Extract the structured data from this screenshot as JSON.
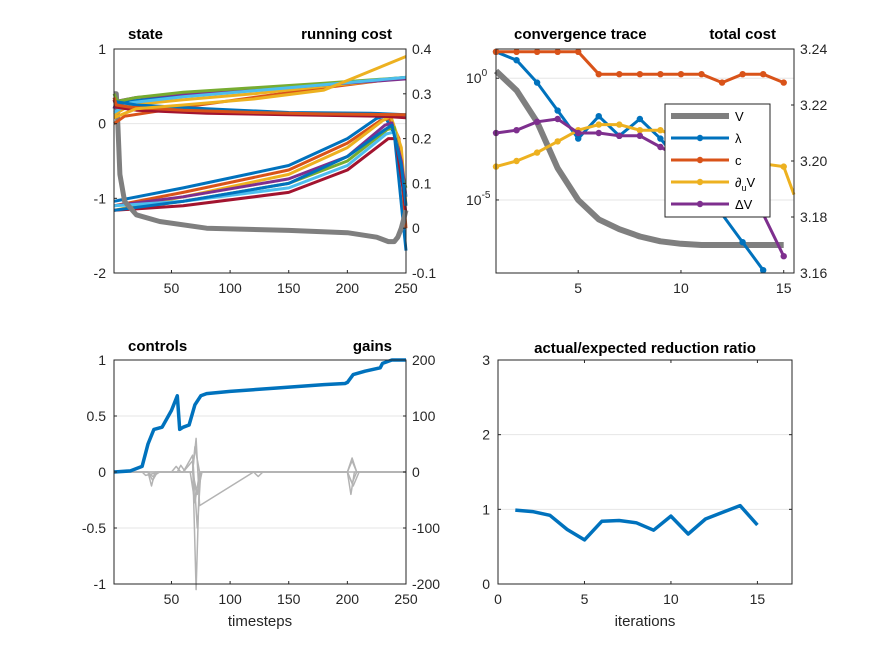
{
  "colors": {
    "V": "#7f7f7f",
    "lambda": "#0072bd",
    "c": "#d95319",
    "duV": "#edb120",
    "dV": "#7e2f8e",
    "gray": "#b3b3b3",
    "axis": "#262626",
    "grid": "#e6e6e6",
    "states": [
      "#0072bd",
      "#d95319",
      "#edb120",
      "#7e2f8e",
      "#77ac30",
      "#4dbeee",
      "#a2142f",
      "#0072bd",
      "#d95319",
      "#edb120"
    ]
  },
  "panels": {
    "top_left": {
      "title_left": "state",
      "title_right": "running cost"
    },
    "top_right": {
      "title_left": "convergence trace",
      "title_right": "total cost"
    },
    "bottom_left": {
      "title_left": "controls",
      "title_right": "gains",
      "xlabel": "timesteps"
    },
    "bottom_right": {
      "title": "actual/expected reduction ratio",
      "xlabel": "iterations"
    }
  },
  "chart_data": [
    {
      "id": "state",
      "type": "line",
      "title_left": "state",
      "title_right": "running cost",
      "x_range": [
        1,
        250
      ],
      "x_ticks": [
        50,
        100,
        150,
        200,
        250
      ],
      "ylim": [
        -2,
        1
      ],
      "y_ticks": [
        -2,
        -1,
        0,
        1
      ],
      "y2lim": [
        -0.1,
        0.4
      ],
      "y2_ticks": [
        -0.1,
        0,
        0.1,
        0.2,
        0.3,
        0.4
      ],
      "legend": "none",
      "state_series": [
        {
          "x": [
            1,
            3,
            15,
            60,
            120,
            180,
            250
          ],
          "y": [
            0.2,
            0.25,
            0.3,
            0.38,
            0.45,
            0.52,
            0.62
          ]
        },
        {
          "x": [
            1,
            10,
            60,
            120,
            180,
            250
          ],
          "y": [
            0.0,
            0.1,
            0.22,
            0.35,
            0.48,
            0.62
          ]
        },
        {
          "x": [
            1,
            15,
            60,
            120,
            180,
            250
          ],
          "y": [
            0.12,
            0.25,
            0.32,
            0.4,
            0.5,
            0.61
          ]
        },
        {
          "x": [
            1,
            3,
            20,
            60,
            120,
            180,
            250
          ],
          "y": [
            0.2,
            0.3,
            0.35,
            0.4,
            0.45,
            0.52,
            0.6
          ]
        },
        {
          "x": [
            1,
            4,
            20,
            60,
            120,
            180,
            250
          ],
          "y": [
            0.4,
            0.3,
            0.35,
            0.42,
            0.48,
            0.54,
            0.62
          ]
        },
        {
          "x": [
            1,
            15,
            60,
            120,
            180,
            250
          ],
          "y": [
            0.15,
            0.28,
            0.36,
            0.44,
            0.52,
            0.62
          ]
        },
        {
          "x": [
            1,
            3,
            20,
            80,
            150,
            230,
            250
          ],
          "y": [
            0.32,
            0.22,
            0.18,
            0.14,
            0.12,
            0.1,
            0.08
          ]
        },
        {
          "x": [
            1,
            20,
            80,
            150,
            220,
            250
          ],
          "y": [
            0.3,
            0.25,
            0.2,
            0.15,
            0.14,
            0.12
          ]
        },
        {
          "x": [
            1,
            3,
            15,
            60,
            120,
            180,
            250
          ],
          "y": [
            0.35,
            0.25,
            0.22,
            0.18,
            0.15,
            0.13,
            0.12
          ]
        },
        {
          "x": [
            1,
            20,
            60,
            120,
            180,
            250
          ],
          "y": [
            0.08,
            0.2,
            0.25,
            0.33,
            0.45,
            0.9
          ]
        }
      ],
      "cost_series": [
        {
          "x": [
            1,
            60,
            150,
            200,
            225,
            232,
            240,
            250
          ],
          "y": [
            0.06,
            0.09,
            0.14,
            0.2,
            0.245,
            0.25,
            0.21,
            -0.05
          ]
        },
        {
          "x": [
            1,
            60,
            150,
            200,
            228,
            236,
            244,
            250
          ],
          "y": [
            0.05,
            0.08,
            0.13,
            0.19,
            0.24,
            0.245,
            0.2,
            0.0
          ]
        },
        {
          "x": [
            1,
            60,
            150,
            200,
            230,
            237,
            246,
            250
          ],
          "y": [
            0.04,
            0.07,
            0.12,
            0.18,
            0.24,
            0.25,
            0.18,
            0.05
          ]
        },
        {
          "x": [
            1,
            60,
            150,
            200,
            232,
            238,
            246,
            250
          ],
          "y": [
            0.05,
            0.07,
            0.11,
            0.16,
            0.23,
            0.235,
            0.15,
            0.07
          ]
        },
        {
          "x": [
            1,
            60,
            150,
            200,
            234,
            240,
            246,
            250
          ],
          "y": [
            0.04,
            0.06,
            0.1,
            0.15,
            0.22,
            0.225,
            0.12,
            0.09
          ]
        },
        {
          "x": [
            1,
            60,
            150,
            200,
            233,
            240,
            247,
            250
          ],
          "y": [
            0.05,
            0.06,
            0.09,
            0.14,
            0.21,
            0.215,
            0.11,
            0.07
          ]
        },
        {
          "x": [
            1,
            60,
            150,
            200,
            235,
            241,
            248,
            250
          ],
          "y": [
            0.04,
            0.05,
            0.08,
            0.13,
            0.2,
            0.2,
            0.08,
            0.03
          ]
        },
        {
          "x": [
            1,
            60,
            150,
            200,
            232,
            238,
            246,
            250
          ],
          "y": [
            0.04,
            0.06,
            0.1,
            0.16,
            0.22,
            0.23,
            0.14,
            0.05
          ]
        }
      ],
      "cost_V": {
        "x": [
          1,
          3,
          4,
          6,
          10,
          20,
          40,
          80,
          150,
          200,
          225,
          235,
          240,
          243,
          246,
          248,
          250
        ],
        "y": [
          0.3,
          0.3,
          0.25,
          0.12,
          0.06,
          0.03,
          0.015,
          0.0,
          -0.005,
          -0.01,
          -0.02,
          -0.03,
          -0.03,
          -0.02,
          0.0,
          0.02,
          0.04
        ]
      }
    },
    {
      "id": "convergence",
      "type": "line",
      "title_left": "convergence trace",
      "title_right": "total cost",
      "x_range": [
        1,
        15.5
      ],
      "x_ticks": [
        5,
        10,
        15
      ],
      "y_log": true,
      "ylim_exp": [
        -8,
        1.2
      ],
      "y_ticks_exp": [
        0,
        -5
      ],
      "y2lim": [
        3.16,
        3.24
      ],
      "y2_ticks": [
        3.16,
        3.18,
        3.2,
        3.22,
        3.24
      ],
      "legend": "center-right",
      "series": [
        {
          "name": "V",
          "axis": "left",
          "x": [
            1,
            2,
            3,
            4,
            5,
            6,
            7,
            8,
            9,
            10,
            11,
            12,
            13,
            14,
            15
          ],
          "y_exp": [
            0.3,
            -0.5,
            -1.8,
            -3.7,
            -5.0,
            -5.8,
            -6.2,
            -6.5,
            -6.7,
            -6.8,
            -6.85,
            -6.85,
            -6.85,
            -6.85,
            -6.85
          ]
        },
        {
          "name": "λ",
          "axis": "right",
          "x": [
            1,
            2,
            3,
            4,
            5,
            6,
            7,
            8,
            9,
            10,
            11,
            12,
            13,
            14
          ],
          "y": [
            3.239,
            3.236,
            3.228,
            3.218,
            3.208,
            3.216,
            3.209,
            3.215,
            3.208,
            3.199,
            3.19,
            3.181,
            3.171,
            3.161
          ]
        },
        {
          "name": "c",
          "axis": "right",
          "x": [
            1,
            2,
            3,
            4,
            5,
            6,
            7,
            8,
            9,
            10,
            11,
            12,
            13,
            14,
            15
          ],
          "y": [
            3.239,
            3.239,
            3.239,
            3.239,
            3.239,
            3.231,
            3.231,
            3.231,
            3.231,
            3.231,
            3.231,
            3.228,
            3.231,
            3.231,
            3.228
          ]
        },
        {
          "name": "∂uV",
          "axis": "right",
          "x": [
            1,
            2,
            3,
            4,
            5,
            6,
            7,
            8,
            9,
            10,
            11,
            12,
            13,
            14,
            15,
            15.5
          ],
          "y": [
            3.198,
            3.2,
            3.203,
            3.207,
            3.211,
            3.213,
            3.213,
            3.211,
            3.211,
            3.208,
            3.208,
            3.205,
            3.203,
            3.199,
            3.198,
            3.188
          ]
        },
        {
          "name": "ΔV",
          "axis": "right",
          "x": [
            1,
            2,
            3,
            4,
            5,
            6,
            7,
            8,
            9,
            10,
            11,
            12,
            13,
            14,
            15
          ],
          "y": [
            3.21,
            3.211,
            3.214,
            3.215,
            3.21,
            3.21,
            3.209,
            3.209,
            3.205,
            3.201,
            3.197,
            3.192,
            3.186,
            3.181,
            3.166
          ]
        }
      ]
    },
    {
      "id": "controls",
      "type": "line",
      "title_left": "controls",
      "title_right": "gains",
      "x_range": [
        1,
        250
      ],
      "x_ticks": [
        50,
        100,
        150,
        200,
        250
      ],
      "ylim": [
        -1,
        1
      ],
      "y_ticks": [
        -1,
        -0.5,
        0,
        0.5,
        1
      ],
      "y2lim": [
        -200,
        200
      ],
      "y2_ticks": [
        -200,
        -100,
        0,
        100,
        200
      ],
      "legend": "none",
      "control": {
        "x": [
          1,
          15,
          25,
          30,
          35,
          42,
          50,
          55,
          57,
          60,
          65,
          70,
          75,
          80,
          100,
          140,
          180,
          198,
          200,
          205,
          215,
          228,
          230,
          238,
          250
        ],
        "y": [
          0.0,
          0.01,
          0.05,
          0.25,
          0.38,
          0.4,
          0.55,
          0.68,
          0.38,
          0.4,
          0.42,
          0.6,
          0.68,
          0.7,
          0.72,
          0.75,
          0.78,
          0.79,
          0.8,
          0.87,
          0.9,
          0.93,
          0.97,
          1.0,
          1.0
        ]
      },
      "gains": [
        {
          "x": [
            1,
            30,
            33,
            36,
            60,
            68,
            71,
            74,
            80,
            250
          ],
          "y": [
            0,
            0,
            -25,
            0,
            0,
            20,
            -210,
            0,
            0,
            0
          ]
        },
        {
          "x": [
            1,
            30,
            34,
            38,
            60,
            68,
            72,
            75,
            200,
            203,
            206,
            250
          ],
          "y": [
            0,
            0,
            -15,
            0,
            0,
            30,
            -100,
            0,
            0,
            -40,
            0,
            0
          ]
        },
        {
          "x": [
            1,
            50,
            54,
            58,
            68,
            71,
            74,
            120,
            124,
            128,
            200,
            204,
            208,
            250
          ],
          "y": [
            0,
            0,
            10,
            0,
            0,
            60,
            -60,
            0,
            -8,
            0,
            0,
            25,
            0,
            0
          ]
        },
        {
          "x": [
            1,
            25,
            28,
            40,
            68,
            72,
            76,
            200,
            204,
            208,
            250
          ],
          "y": [
            0,
            0,
            -6,
            0,
            0,
            -40,
            0,
            0,
            -20,
            0,
            0
          ]
        },
        {
          "x": [
            1,
            55,
            58,
            62,
            68,
            70,
            74,
            200,
            204,
            208,
            250
          ],
          "y": [
            0,
            0,
            12,
            0,
            0,
            45,
            0,
            0,
            20,
            0,
            0
          ]
        },
        {
          "x": [
            1,
            30,
            34,
            40,
            66,
            70,
            74,
            200,
            205,
            210,
            250
          ],
          "y": [
            0,
            0,
            -8,
            0,
            0,
            -55,
            0,
            0,
            -25,
            0,
            0
          ]
        }
      ]
    },
    {
      "id": "reduction_ratio",
      "type": "line",
      "title": "actual/expected reduction ratio",
      "xlabel": "iterations",
      "x_range": [
        0,
        17
      ],
      "x_ticks": [
        0,
        5,
        10,
        15
      ],
      "ylim": [
        0,
        3
      ],
      "y_ticks": [
        0,
        1,
        2,
        3
      ],
      "legend": "none",
      "series": [
        {
          "x": [
            1,
            2,
            3,
            4,
            5,
            6,
            7,
            8,
            9,
            10,
            11,
            12,
            13,
            14,
            15
          ],
          "y": [
            0.99,
            0.97,
            0.92,
            0.73,
            0.59,
            0.84,
            0.85,
            0.82,
            0.72,
            0.91,
            0.67,
            0.87,
            0.96,
            1.05,
            0.79
          ]
        }
      ]
    }
  ]
}
